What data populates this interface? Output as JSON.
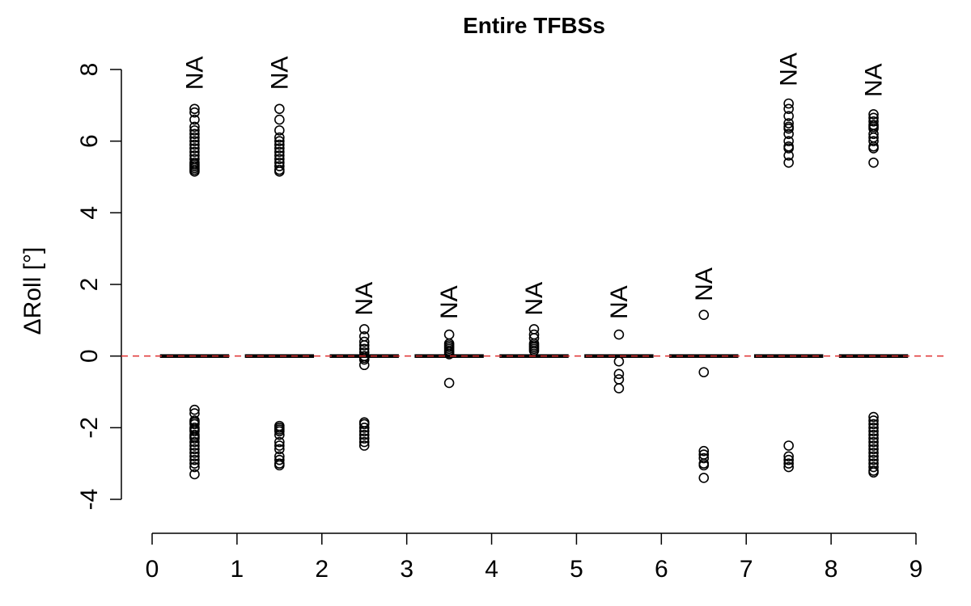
{
  "chart_data": {
    "type": "box",
    "title": "Entire TFBSs",
    "xlabel": "",
    "ylabel": "ΔRoll [°]",
    "xlim": [
      0,
      9
    ],
    "ylim": [
      -4,
      8
    ],
    "x_ticks": [
      "0",
      "1",
      "2",
      "3",
      "4",
      "5",
      "6",
      "7",
      "8",
      "9"
    ],
    "y_ticks": [
      "-4",
      "-2",
      "0",
      "2",
      "4",
      "6",
      "8"
    ],
    "reference_line": {
      "y": 0,
      "color": "#e03030",
      "style": "dashed"
    },
    "box_color": "#000000",
    "point_color": "#000000",
    "na_label": "NA",
    "groups": [
      {
        "x": 0.5,
        "median": 0,
        "q1": 0,
        "q3": 0,
        "na_y": 7.9,
        "outliers": [
          6.9,
          6.8,
          6.6,
          6.4,
          6.3,
          6.2,
          6.1,
          6.0,
          5.9,
          5.8,
          5.7,
          5.6,
          5.5,
          5.4,
          5.35,
          5.3,
          5.25,
          5.2,
          5.15,
          -1.5,
          -1.6,
          -1.8,
          -1.85,
          -1.9,
          -2.0,
          -2.05,
          -2.1,
          -2.2,
          -2.25,
          -2.3,
          -2.4,
          -2.5,
          -2.6,
          -2.7,
          -2.8,
          -2.9,
          -3.0,
          -3.1,
          -3.3
        ]
      },
      {
        "x": 1.5,
        "median": 0,
        "q1": 0,
        "q3": 0,
        "na_y": 7.9,
        "outliers": [
          6.9,
          6.6,
          6.3,
          6.1,
          6.0,
          5.9,
          5.8,
          5.7,
          5.6,
          5.5,
          5.4,
          5.3,
          5.2,
          5.15,
          -1.95,
          -2.0,
          -2.05,
          -2.1,
          -2.2,
          -2.4,
          -2.5,
          -2.6,
          -2.8,
          -2.9,
          -3.0,
          -3.05
        ]
      },
      {
        "x": 2.5,
        "median": 0,
        "q1": 0,
        "q3": 0,
        "na_y": 1.6,
        "outliers": [
          0.75,
          0.55,
          0.4,
          0.3,
          0.2,
          0.1,
          0.0,
          -0.05,
          -0.1,
          -0.25,
          -1.85,
          -1.9,
          -2.0,
          -2.1,
          -2.2,
          -2.3,
          -2.4,
          -2.5
        ]
      },
      {
        "x": 3.5,
        "median": 0,
        "q1": 0,
        "q3": 0,
        "na_y": 1.5,
        "outliers": [
          0.6,
          0.35,
          0.3,
          0.25,
          0.2,
          0.15,
          0.1,
          0.05,
          -0.75
        ]
      },
      {
        "x": 4.5,
        "median": 0,
        "q1": 0,
        "q3": 0,
        "na_y": 1.6,
        "outliers": [
          0.75,
          0.6,
          0.5,
          0.35,
          0.3,
          0.25,
          0.2,
          0.15
        ]
      },
      {
        "x": 5.5,
        "median": 0,
        "q1": 0,
        "q3": 0,
        "na_y": 1.5,
        "outliers": [
          0.6,
          -0.15,
          -0.5,
          -0.65,
          -0.9
        ]
      },
      {
        "x": 6.5,
        "median": 0,
        "q1": 0,
        "q3": 0,
        "na_y": 2.0,
        "outliers": [
          1.15,
          -0.45,
          -2.65,
          -2.75,
          -2.85,
          -3.0,
          -3.05,
          -3.4
        ]
      },
      {
        "x": 7.5,
        "median": 0,
        "q1": 0,
        "q3": 0,
        "na_y": 8.0,
        "outliers": [
          7.05,
          6.9,
          6.7,
          6.5,
          6.4,
          6.35,
          6.2,
          6.0,
          5.85,
          5.8,
          5.6,
          5.4,
          -2.5,
          -2.8,
          -2.9,
          -3.0,
          -3.1
        ]
      },
      {
        "x": 8.5,
        "median": 0,
        "q1": 0,
        "q3": 0,
        "na_y": 7.7,
        "outliers": [
          6.75,
          6.65,
          6.55,
          6.45,
          6.4,
          6.35,
          6.2,
          6.1,
          6.0,
          5.85,
          5.8,
          5.4,
          -1.7,
          -1.8,
          -1.9,
          -2.0,
          -2.1,
          -2.2,
          -2.3,
          -2.4,
          -2.5,
          -2.6,
          -2.7,
          -2.8,
          -2.9,
          -3.0,
          -3.1,
          -3.2,
          -3.25
        ]
      }
    ]
  }
}
